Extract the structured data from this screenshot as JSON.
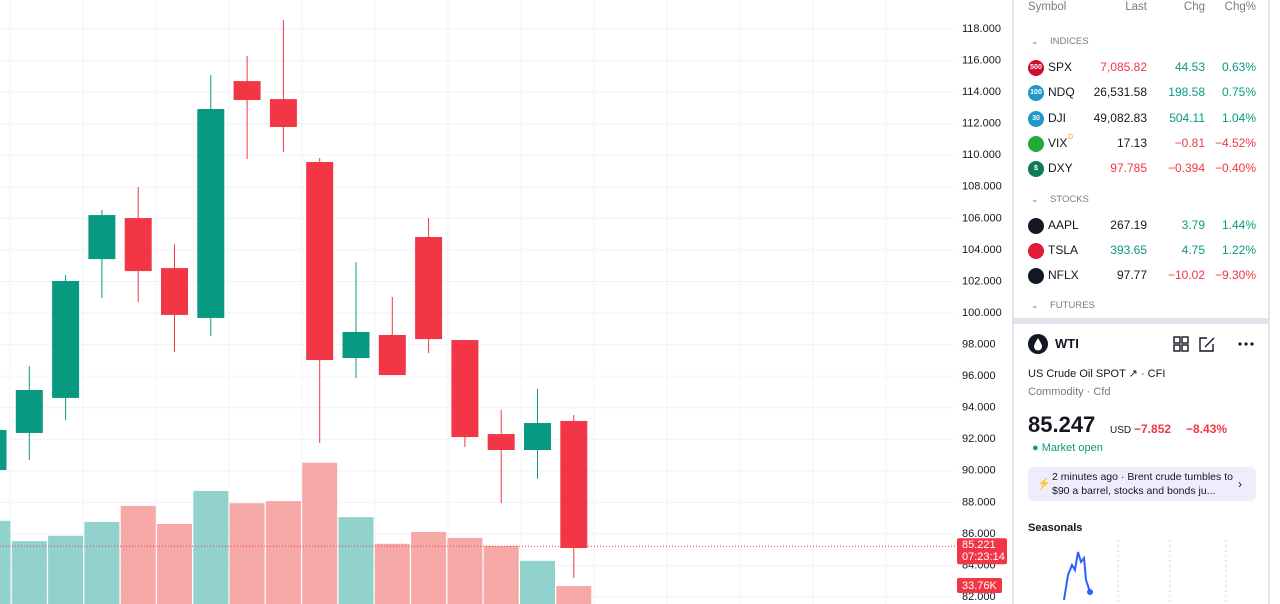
{
  "chart_data": {
    "type": "candlestick",
    "open": [
      90.05,
      92.4,
      94.62,
      103.42,
      106.02,
      102.85,
      99.69,
      114.7,
      113.56,
      109.57,
      97.15,
      98.61,
      104.82,
      98.29,
      92.33,
      91.32,
      93.16
    ],
    "high": [
      92.8,
      96.64,
      102.41,
      106.53,
      107.99,
      104.37,
      115.09,
      116.29,
      118.57,
      109.83,
      103.23,
      101.02,
      106.02,
      98.29,
      93.86,
      95.19,
      93.54
    ],
    "low": [
      89.6,
      90.69,
      93.22,
      100.95,
      100.7,
      97.53,
      98.54,
      109.76,
      110.21,
      91.76,
      95.88,
      96.07,
      97.47,
      91.51,
      87.96,
      89.5,
      83.21
    ],
    "close": [
      92.59,
      95.12,
      102.03,
      106.21,
      102.66,
      99.88,
      112.93,
      113.5,
      111.79,
      97.02,
      98.8,
      96.07,
      98.35,
      92.14,
      91.32,
      93.03,
      85.11
    ],
    "volume": [
      156,
      118,
      128,
      154,
      184,
      150,
      212,
      189,
      193,
      265,
      163,
      113,
      135,
      124,
      109,
      81,
      33.76
    ],
    "volume_labels": [
      null,
      null,
      null,
      null,
      null,
      null,
      null,
      null,
      null,
      null,
      null,
      null,
      null,
      null,
      null,
      null,
      "33.76K"
    ],
    "up_color": "#089981",
    "down_color": "#f23645",
    "volume_up_color": "#92d2cc",
    "volume_down_color": "#f7a9a7",
    "ylim": [
      81.56,
      119.84
    ],
    "yticks": [
      {
        "value": 82,
        "label": "82.000"
      },
      {
        "value": 84,
        "label": "84.000"
      },
      {
        "value": 86,
        "label": "86.000"
      },
      {
        "value": 88,
        "label": "88.000"
      },
      {
        "value": 90,
        "label": "90.000"
      },
      {
        "value": 92,
        "label": "92.000"
      },
      {
        "value": 94,
        "label": "94.000"
      },
      {
        "value": 96,
        "label": "96.000"
      },
      {
        "value": 98,
        "label": "98.000"
      },
      {
        "value": 100,
        "label": "100.000"
      },
      {
        "value": 102,
        "label": "102.000"
      },
      {
        "value": 104,
        "label": "104.000"
      },
      {
        "value": 106,
        "label": "106.000"
      },
      {
        "value": 108,
        "label": "108.000"
      },
      {
        "value": 110,
        "label": "110.000"
      },
      {
        "value": 112,
        "label": "112.000"
      },
      {
        "value": 114,
        "label": "114.000"
      },
      {
        "value": 116,
        "label": "116.000"
      },
      {
        "value": 118,
        "label": "118.000"
      }
    ],
    "grid": true,
    "last_price": 85.221,
    "countdown": "07:23:14"
  },
  "watchlist": {
    "columns": [
      "Symbol",
      "Last",
      "Chg",
      "Chg%"
    ],
    "sections": [
      {
        "title": "INDICES",
        "rows": [
          {
            "icon": "500",
            "icon_color": "#c8102e",
            "symbol": "SPX",
            "last": "7,085.82",
            "chg": "44.53",
            "chg_pct": "0.63%",
            "color": "#089981",
            "last_color": "#f23645"
          },
          {
            "icon": "100",
            "icon_color": "#2196c9",
            "symbol": "NDQ",
            "last": "26,531.58",
            "chg": "198.58",
            "chg_pct": "0.75%",
            "color": "#089981",
            "last_color": "#131722"
          },
          {
            "icon": "30",
            "icon_color": "#2196c9",
            "symbol": "DJI",
            "last": "49,082.83",
            "chg": "504.11",
            "chg_pct": "1.04%",
            "color": "#089981",
            "last_color": "#131722"
          },
          {
            "icon_color": "#22ab3a",
            "symbol": "VIX",
            "flag": "D",
            "last": "17.13",
            "chg": "−0.81",
            "chg_pct": "−4.52%",
            "color": "#f23645",
            "last_color": "#131722"
          },
          {
            "icon": "$",
            "icon_color": "#0f7a5a",
            "symbol": "DXY",
            "last": "97.785",
            "chg": "−0.394",
            "chg_pct": "−0.40%",
            "color": "#f23645",
            "last_color": "#f23645"
          }
        ]
      },
      {
        "title": "STOCKS",
        "rows": [
          {
            "icon_color": "#131722",
            "symbol": "AAPL",
            "last": "267.19",
            "chg": "3.79",
            "chg_pct": "1.44%",
            "color": "#089981",
            "last_color": "#131722"
          },
          {
            "icon_color": "#e31937",
            "symbol": "TSLA",
            "last": "393.65",
            "chg": "4.75",
            "chg_pct": "1.22%",
            "color": "#089981",
            "last_color": "#089981"
          },
          {
            "icon_color": "#131722",
            "symbol": "NFLX",
            "last": "97.77",
            "chg": "−10.02",
            "chg_pct": "−9.30%",
            "color": "#f23645",
            "last_color": "#131722"
          }
        ]
      },
      {
        "title": "FUTURES",
        "rows": []
      }
    ]
  },
  "detail": {
    "symbol": "WTI",
    "name": "US Crude Oil SPOT",
    "exchange": "CFI",
    "category": "Commodity",
    "kind": "Cfd",
    "price": "85.247",
    "currency": "USD",
    "change": "−7.852",
    "change_pct": "−8.43%",
    "status": "Market open",
    "news_time": "2 minutes ago",
    "news_text": "Brent crude tumbles to $90 a barrel, stocks and bonds ju...",
    "seasonals": "Seasonals"
  }
}
